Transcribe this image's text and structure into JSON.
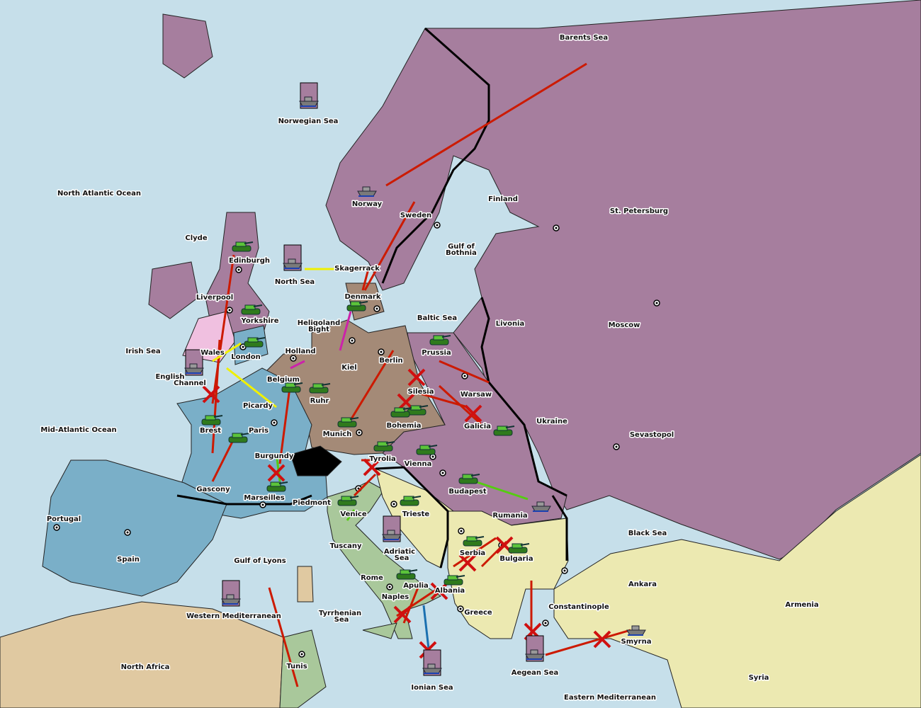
{
  "colors": {
    "sea": "#c6dfea",
    "russia": "#a67e9e",
    "germany": "#a48a77",
    "france": "#7aafc8",
    "italy": "#a9c89b",
    "turkey": "#ece9b1",
    "neutral_africa": "#e0c9a1",
    "england": "#f0c0e0",
    "switzerland": "#000000",
    "order_move": "#cc1a00",
    "order_support_yellow": "#f0f000",
    "order_convoy_magenta": "#cc22aa",
    "order_support_green": "#55cc11"
  },
  "territories": [
    "Barents Sea",
    "Norwegian Sea",
    "North Atlantic Ocean",
    "Norway",
    "Sweden",
    "Finland",
    "St. Petersburg",
    "Clyde",
    "Edinburgh",
    "North Sea",
    "Skagerrack",
    "Gulf of",
    "Bothnia",
    "Liverpool",
    "Denmark",
    "Yorkshire",
    "Baltic Sea",
    "Livonia",
    "Moscow",
    "Heligoland",
    "Bight",
    "Irish Sea",
    "Wales",
    "London",
    "Holland",
    "Prussia",
    "Berlin",
    "Kiel",
    "English",
    "Channel",
    "Belgium",
    "Silesia",
    "Warsaw",
    "Ruhr",
    "Picardy",
    "Ukraine",
    "Bohemia",
    "Galicia",
    "Brest",
    "Paris",
    "Mid-Atlantic Ocean",
    "Munich",
    "Sevastopol",
    "Burgundy",
    "Tyrolia",
    "Vienna",
    "Gascony",
    "Budapest",
    "Marseilles",
    "Piedmont",
    "Venice",
    "Trieste",
    "Rumania",
    "Portugal",
    "Black Sea",
    "Tuscany",
    "Adriatic",
    "Sea",
    "Serbia",
    "Bulgaria",
    "Spain",
    "Gulf of Lyons",
    "Ankara",
    "Rome",
    "Albania",
    "Apulia",
    "Constantinople",
    "Armenia",
    "Naples",
    "Greece",
    "Tyrrhenian",
    "Sea",
    "Western Mediterranean",
    "Smyrna",
    "Tunis",
    "North Africa",
    "Aegean Sea",
    "Ionian Sea",
    "Syria",
    "Eastern Mediterranean"
  ],
  "units": [
    {
      "type": "fleet",
      "territory": "Norwegian Sea",
      "boxed": true
    },
    {
      "type": "fleet",
      "territory": "North Sea",
      "boxed": true
    },
    {
      "type": "fleet",
      "territory": "Norway",
      "boxed": false
    },
    {
      "type": "fleet",
      "territory": "English Channel",
      "boxed": true
    },
    {
      "type": "fleet",
      "territory": "Western Mediterranean",
      "boxed": true
    },
    {
      "type": "fleet",
      "territory": "Adriatic Sea",
      "boxed": true
    },
    {
      "type": "fleet",
      "territory": "Ionian Sea",
      "boxed": true
    },
    {
      "type": "fleet",
      "territory": "Aegean Sea",
      "boxed": true
    },
    {
      "type": "fleet",
      "territory": "Rumania",
      "boxed": false
    },
    {
      "type": "fleet",
      "territory": "Smyrna",
      "boxed": false
    },
    {
      "type": "army",
      "territory": "Edinburgh"
    },
    {
      "type": "army",
      "territory": "Yorkshire"
    },
    {
      "type": "army",
      "territory": "London"
    },
    {
      "type": "army",
      "territory": "Denmark"
    },
    {
      "type": "army",
      "territory": "Prussia"
    },
    {
      "type": "army",
      "territory": "Belgium"
    },
    {
      "type": "army",
      "territory": "Ruhr"
    },
    {
      "type": "army",
      "territory": "Silesia"
    },
    {
      "type": "army",
      "territory": "Bohemia"
    },
    {
      "type": "army",
      "territory": "Munich"
    },
    {
      "type": "army",
      "territory": "Galicia"
    },
    {
      "type": "army",
      "territory": "Brest"
    },
    {
      "type": "army",
      "territory": "Paris"
    },
    {
      "type": "army",
      "territory": "Marseilles"
    },
    {
      "type": "army",
      "territory": "Tyrolia"
    },
    {
      "type": "army",
      "territory": "Vienna"
    },
    {
      "type": "army",
      "territory": "Budapest"
    },
    {
      "type": "army",
      "territory": "Venice"
    },
    {
      "type": "army",
      "territory": "Trieste"
    },
    {
      "type": "army",
      "territory": "Serbia"
    },
    {
      "type": "army",
      "territory": "Bulgaria"
    },
    {
      "type": "army",
      "territory": "Apulia"
    },
    {
      "type": "army",
      "territory": "Albania"
    }
  ]
}
